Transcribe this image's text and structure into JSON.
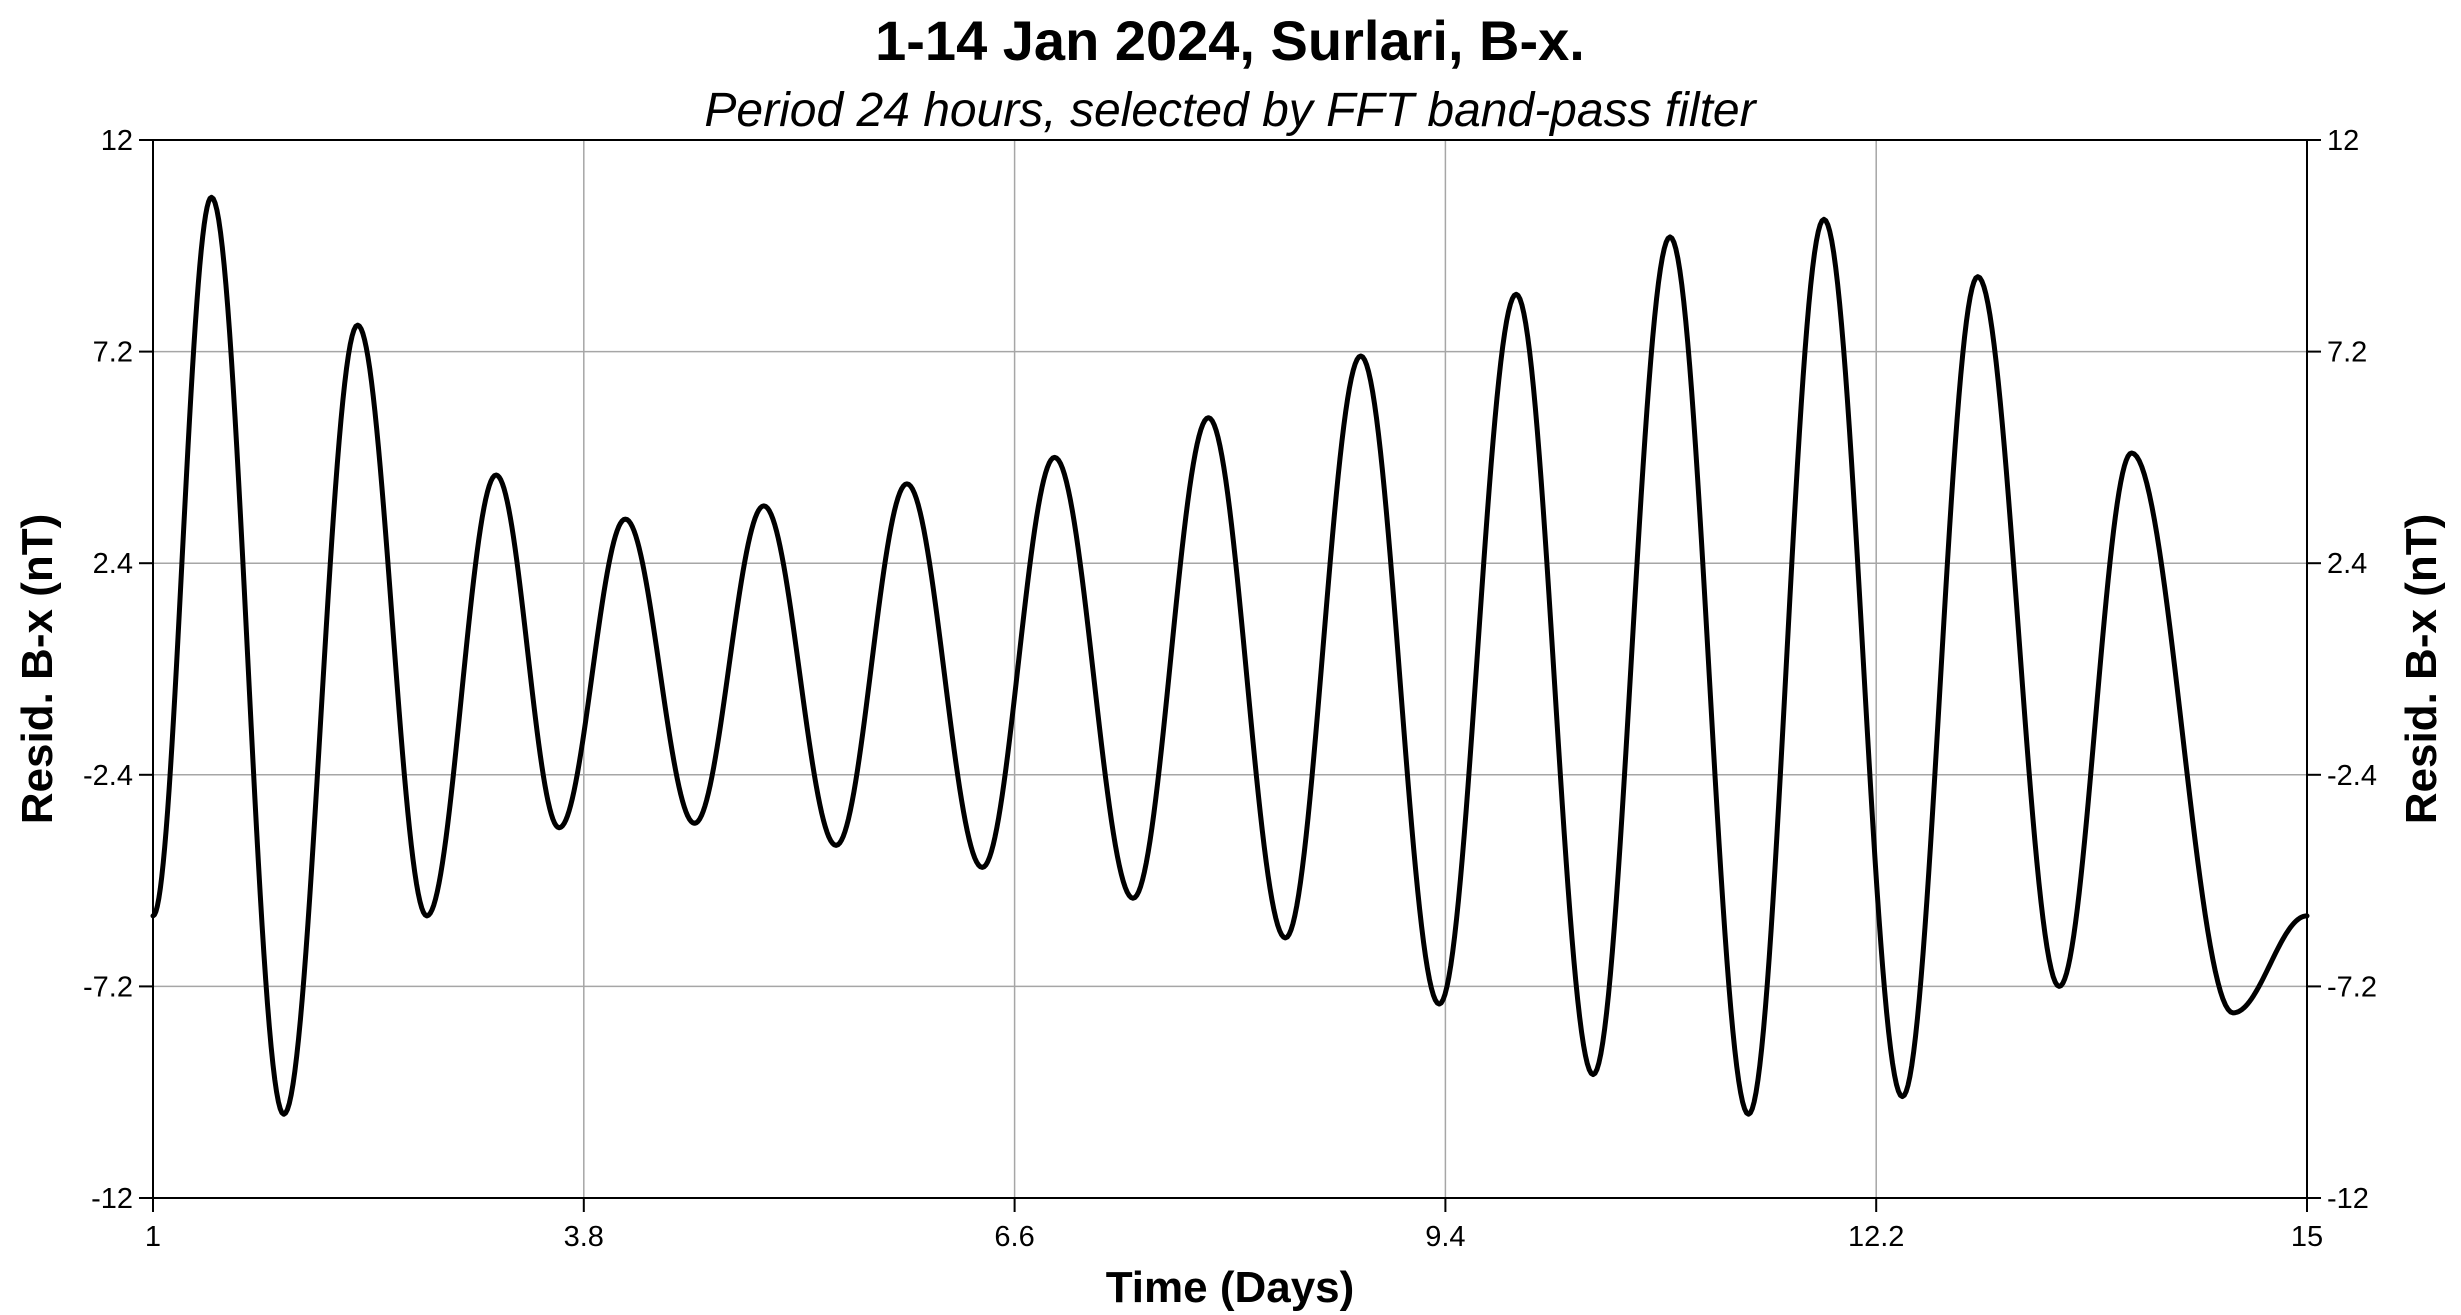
{
  "chart_data": {
    "type": "line",
    "title": "1-14 Jan 2024, Surlari, B-x.",
    "subtitle": "Period 24 hours, selected by FFT band-pass filter",
    "xlabel": "Time (Days)",
    "ylabel": "Resid. B-x (nT)",
    "ylabel_right": "Resid. B-x (nT)",
    "xlim": [
      1,
      15
    ],
    "ylim": [
      -12,
      12
    ],
    "x_ticks": [
      1,
      3.8,
      6.6,
      9.4,
      12.2,
      15
    ],
    "x_tick_labels": [
      "1",
      "3.8",
      "6.6",
      "9.4",
      "12.2",
      "15"
    ],
    "y_ticks": [
      12,
      7.2,
      2.4,
      -2.4,
      -7.2,
      -12
    ],
    "y_tick_labels": [
      "12",
      "7.2",
      "2.4",
      "-2.4",
      "-7.2",
      "-12"
    ],
    "grid": true,
    "line_color": "#000000",
    "grid_color": "#a6a6a6",
    "series": [
      {
        "extrema": [
          [
            1.0,
            -5.6
          ],
          [
            1.38,
            10.7
          ],
          [
            1.85,
            -10.1
          ],
          [
            2.33,
            7.8
          ],
          [
            2.78,
            -5.6
          ],
          [
            3.23,
            4.4
          ],
          [
            3.64,
            -3.6
          ],
          [
            4.07,
            3.4
          ],
          [
            4.52,
            -3.5
          ],
          [
            4.97,
            3.7
          ],
          [
            5.44,
            -4.0
          ],
          [
            5.9,
            4.2
          ],
          [
            6.39,
            -4.5
          ],
          [
            6.86,
            4.8
          ],
          [
            7.37,
            -5.2
          ],
          [
            7.86,
            5.7
          ],
          [
            8.36,
            -6.1
          ],
          [
            8.85,
            7.1
          ],
          [
            9.36,
            -7.6
          ],
          [
            9.86,
            8.5
          ],
          [
            10.36,
            -9.2
          ],
          [
            10.86,
            9.8
          ],
          [
            11.37,
            -10.1
          ],
          [
            11.86,
            10.2
          ],
          [
            12.37,
            -9.7
          ],
          [
            12.86,
            8.9
          ],
          [
            13.39,
            -7.2
          ],
          [
            13.86,
            4.9
          ],
          [
            14.52,
            -7.8
          ],
          [
            15.0,
            -5.6
          ]
        ]
      }
    ]
  }
}
